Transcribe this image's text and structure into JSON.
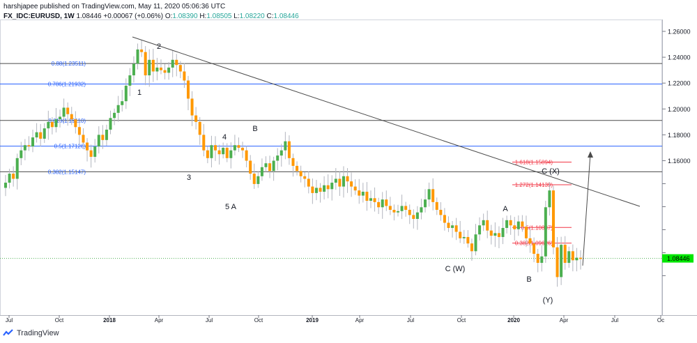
{
  "header": {
    "publisher_line": "harshjapee published on TradingView.com, May 11, 2020 05:06:36 UTC",
    "symbol": "FX_IDC:EURUSD, 1W",
    "last": "1.08446",
    "change": "+0.00067 (+0.06%)",
    "o_label": "O:",
    "o": "1.08390",
    "h_label": "H:",
    "h": "1.08505",
    "l_label": "L:",
    "l": "1.08220",
    "c_label": "C:",
    "c": "1.08446"
  },
  "brand": "TradingView",
  "colors": {
    "up": "#4caf50",
    "down": "#ff9800",
    "fib": "#2962ff",
    "target": "#f23645",
    "price_tag": "#00e600"
  },
  "chart_data": {
    "type": "candlestick",
    "y_ticks": [
      "1.26000",
      "1.24000",
      "1.22000",
      "1.20000",
      "1.18000",
      "1.16000"
    ],
    "y_range": [
      1.06,
      1.265
    ],
    "x_ticks": [
      "Jul",
      "Oct",
      "2018",
      "Apr",
      "Jul",
      "Oct",
      "2019",
      "Apr",
      "Jul",
      "Oct",
      "2020",
      "Apr",
      "Jul",
      "Oc"
    ],
    "current_price": "1.08446",
    "fib_levels": [
      {
        "label": "0.88(1.23511)",
        "value": 1.23511
      },
      {
        "label": "0.786(1.21932)",
        "value": 1.21932
      },
      {
        "label": "0.618(1.19110)",
        "value": 1.1911
      },
      {
        "label": "0.5(1.17126)",
        "value": 1.17126
      },
      {
        "label": "0.382(1.15147)",
        "value": 1.15147
      }
    ],
    "target_levels": [
      {
        "label": "1.618(1.15894)",
        "value": 1.15894
      },
      {
        "label": "1.272(1.14139)",
        "value": 1.14139
      },
      {
        "label": "0.5(1.10837)",
        "value": 1.10837
      },
      {
        "label": "0.382(1.09626)",
        "value": 1.09626
      }
    ],
    "wave_labels": [
      "1",
      "2",
      "3",
      "4",
      "5 A",
      "B",
      "C (W)",
      "A",
      "B",
      "C (X)",
      "(Y)"
    ],
    "series_ohlc_path": [
      1.143,
      1.15,
      1.146,
      1.162,
      1.168,
      1.172,
      1.171,
      1.178,
      1.182,
      1.177,
      1.185,
      1.19,
      1.186,
      1.192,
      1.194,
      1.201,
      1.196,
      1.192,
      1.186,
      1.18,
      1.174,
      1.168,
      1.163,
      1.171,
      1.18,
      1.176,
      1.184,
      1.193,
      1.197,
      1.203,
      1.206,
      1.218,
      1.226,
      1.235,
      1.246,
      1.244,
      1.226,
      1.238,
      1.229,
      1.232,
      1.23,
      1.228,
      1.232,
      1.238,
      1.234,
      1.229,
      1.222,
      1.208,
      1.195,
      1.19,
      1.18,
      1.168,
      1.162,
      1.172,
      1.168,
      1.165,
      1.17,
      1.162,
      1.168,
      1.172,
      1.17,
      1.168,
      1.16,
      1.15,
      1.142,
      1.148,
      1.155,
      1.158,
      1.152,
      1.16,
      1.164,
      1.168,
      1.175,
      1.162,
      1.156,
      1.152,
      1.148,
      1.146,
      1.14,
      1.135,
      1.139,
      1.136,
      1.141,
      1.138,
      1.143,
      1.146,
      1.14,
      1.148,
      1.144,
      1.14,
      1.137,
      1.133,
      1.136,
      1.129,
      1.131,
      1.128,
      1.124,
      1.13,
      1.125,
      1.122,
      1.12,
      1.121,
      1.125,
      1.122,
      1.118,
      1.115,
      1.12,
      1.124,
      1.13,
      1.138,
      1.128,
      1.122,
      1.118,
      1.112,
      1.108,
      1.11,
      1.105,
      1.1,
      1.101,
      1.096,
      1.09,
      1.103,
      1.11,
      1.114,
      1.106,
      1.102,
      1.104,
      1.101,
      1.108,
      1.114,
      1.11,
      1.107,
      1.113,
      1.109,
      1.1,
      1.096,
      1.088,
      1.081,
      1.086,
      1.124,
      1.137,
      1.093,
      1.07,
      1.095,
      1.081,
      1.09,
      1.083,
      1.085,
      1.084
    ]
  }
}
